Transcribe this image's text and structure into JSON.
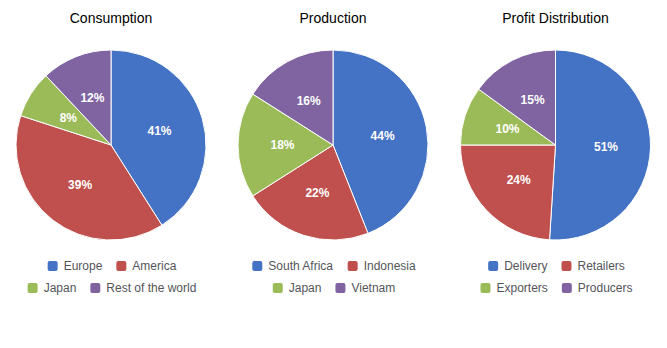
{
  "chart_data": [
    {
      "type": "pie",
      "title": "Consumption",
      "categories": [
        "Europe",
        "America",
        "Japan",
        "Rest of the world"
      ],
      "values": [
        41,
        39,
        8,
        12
      ],
      "value_labels": [
        "41%",
        "39%",
        "8%",
        "12%"
      ],
      "colors": [
        "#4472C4",
        "#C0504D",
        "#9BBB59",
        "#8064A2"
      ],
      "data_labels": true,
      "legend": "bottom"
    },
    {
      "type": "pie",
      "title": "Production",
      "categories": [
        "South Africa",
        "Indonesia",
        "Japan",
        "Vietnam"
      ],
      "values": [
        44,
        22,
        18,
        16
      ],
      "value_labels": [
        "44%",
        "22%",
        "18%",
        "16%"
      ],
      "colors": [
        "#4472C4",
        "#C0504D",
        "#9BBB59",
        "#8064A2"
      ],
      "data_labels": true,
      "legend": "bottom"
    },
    {
      "type": "pie",
      "title": "Profit Distribution",
      "categories": [
        "Delivery",
        "Retailers",
        "Exporters",
        "Producers"
      ],
      "values": [
        51,
        24,
        10,
        15
      ],
      "value_labels": [
        "51%",
        "24%",
        "10%",
        "15%"
      ],
      "colors": [
        "#4472C4",
        "#C0504D",
        "#9BBB59",
        "#8064A2"
      ],
      "data_labels": true,
      "legend": "bottom"
    }
  ]
}
